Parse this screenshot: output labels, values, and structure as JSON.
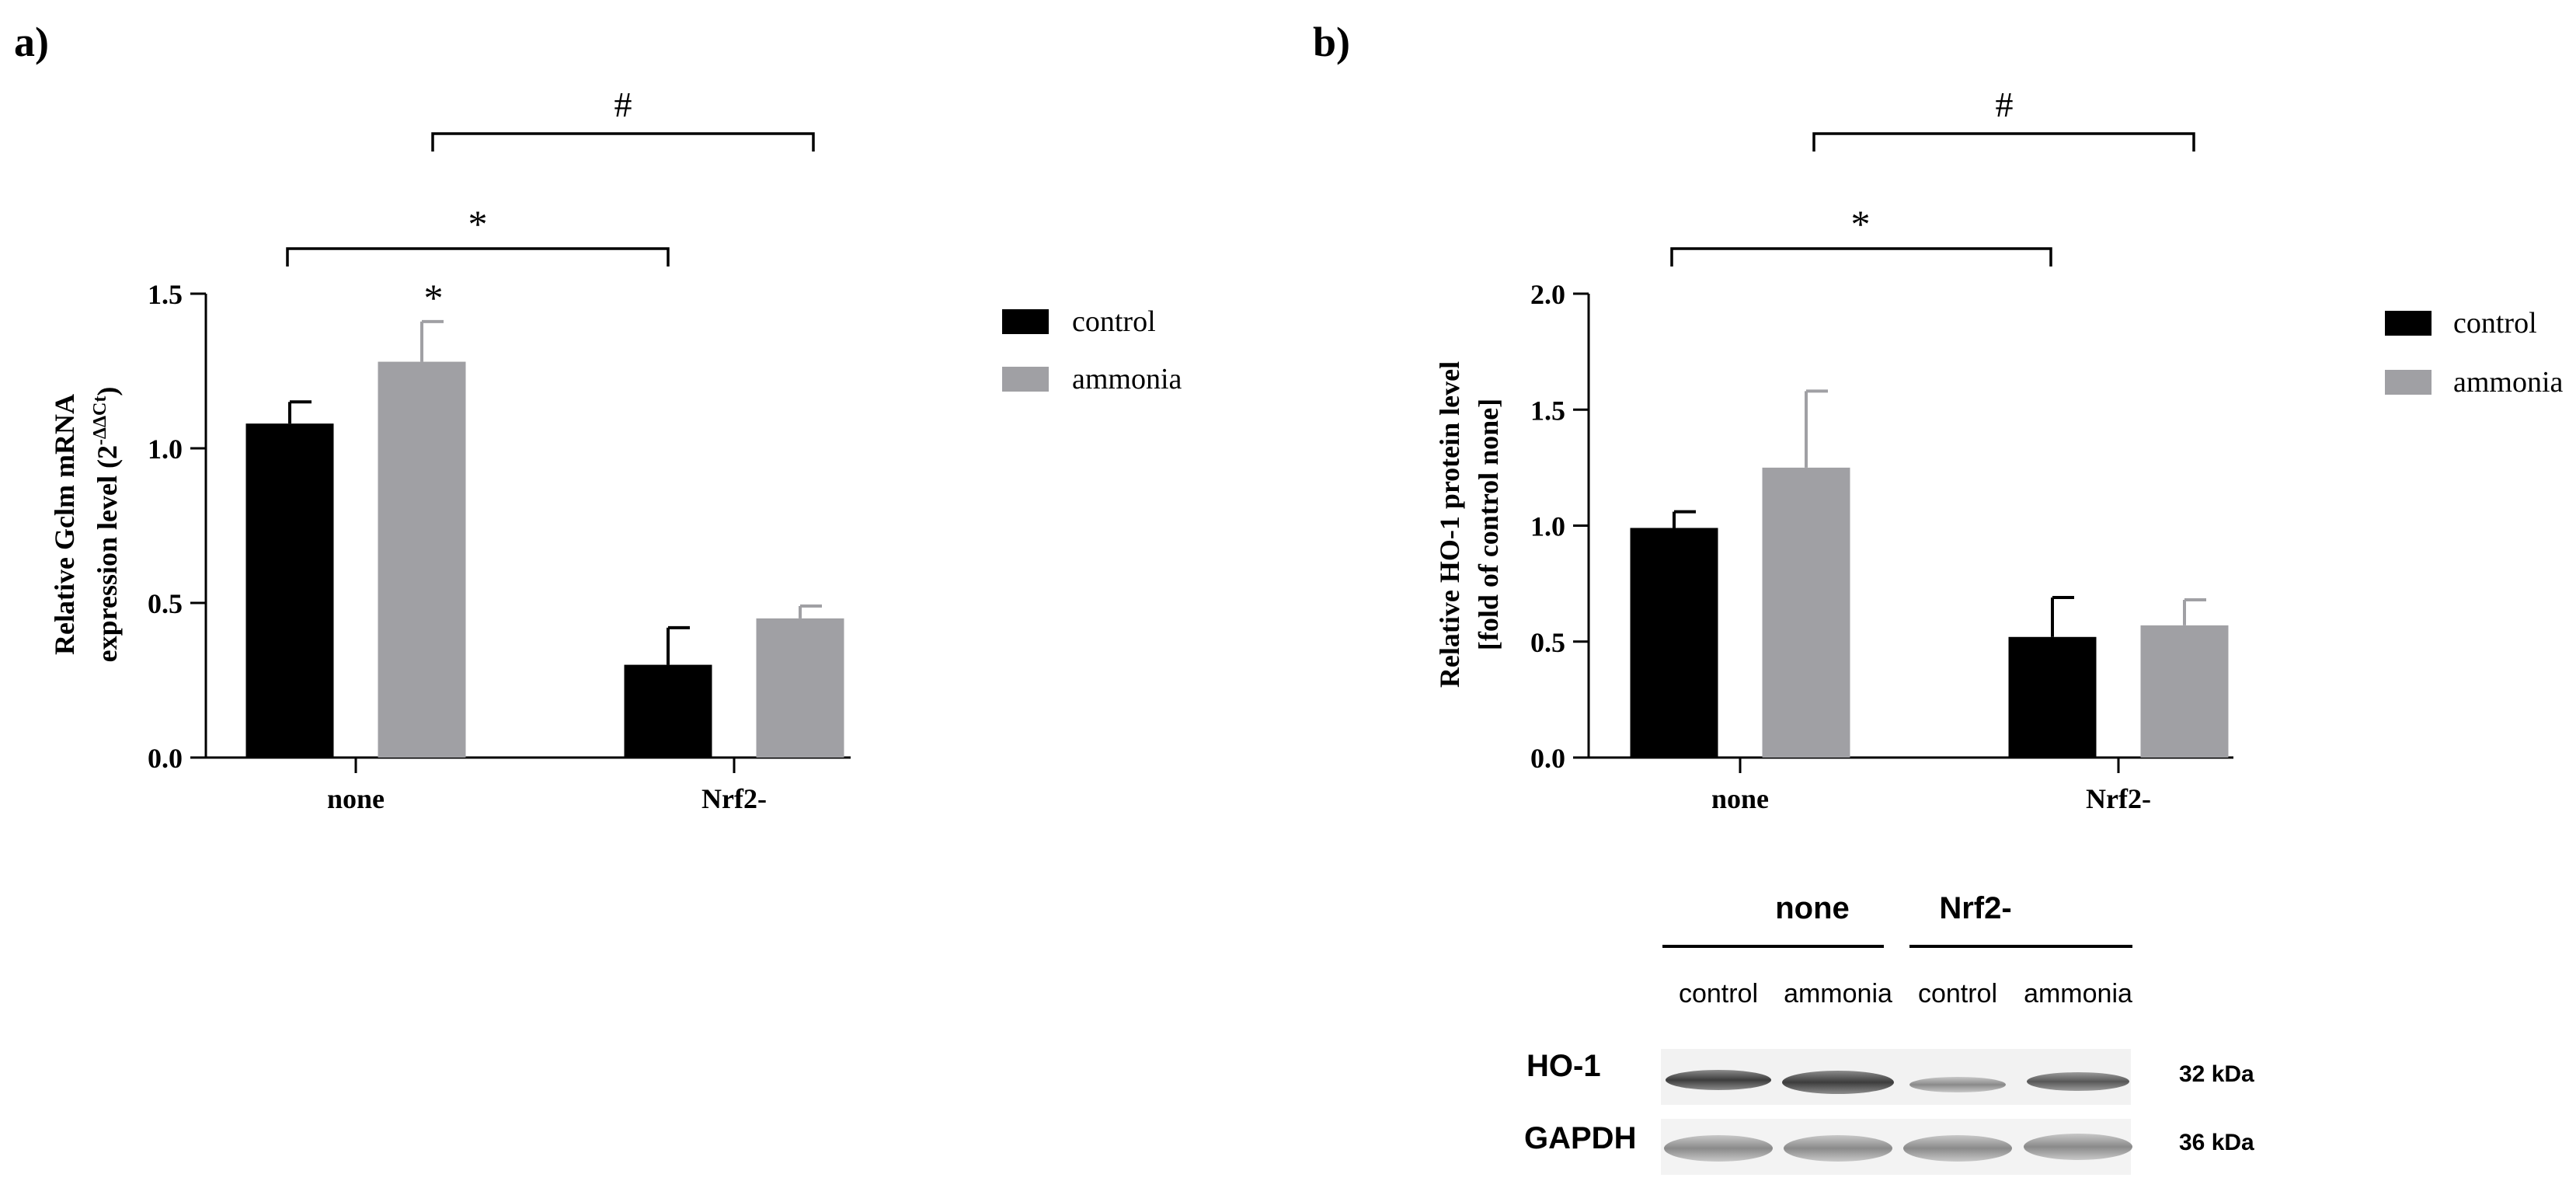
{
  "panels": {
    "a": {
      "label": "a)"
    },
    "b": {
      "label": "b)"
    }
  },
  "chart_data": [
    {
      "type": "bar",
      "panel": "a)",
      "categories": [
        "none",
        "Nrf2-"
      ],
      "series": [
        {
          "name": "control",
          "color": "#000000",
          "values": [
            1.08,
            0.3
          ],
          "errors": [
            0.07,
            0.12
          ]
        },
        {
          "name": "ammonia",
          "color": "#a0a0a4",
          "values": [
            1.28,
            0.45
          ],
          "errors": [
            0.13,
            0.04
          ]
        }
      ],
      "ylabel_line1": "Relative Gclm mRNA",
      "ylabel_line2": "expression level (2",
      "ylabel_sup": "-ΔΔCt",
      "ylabel_close": ")",
      "ylim": [
        0,
        1.5
      ],
      "yticks": [
        "0.0",
        "0.5",
        "1.0",
        "1.5"
      ],
      "ytick_values": [
        0,
        0.5,
        1.0,
        1.5
      ],
      "legend_placement": "right",
      "annotations": {
        "bar_star": "*",
        "bracket_star": "*",
        "bracket_hash": "#"
      }
    },
    {
      "type": "bar",
      "panel": "b)",
      "categories": [
        "none",
        "Nrf2-"
      ],
      "series": [
        {
          "name": "control",
          "color": "#000000",
          "values": [
            0.99,
            0.52
          ],
          "errors": [
            0.07,
            0.17
          ]
        },
        {
          "name": "ammonia",
          "color": "#a0a0a4",
          "values": [
            1.25,
            0.57
          ],
          "errors": [
            0.33,
            0.11
          ]
        }
      ],
      "ylabel_line1": "Relative HO-1 protein level",
      "ylabel_line2": "[fold of control none]",
      "ylim": [
        0,
        2.0
      ],
      "yticks": [
        "0.0",
        "0.5",
        "1.0",
        "1.5",
        "2.0"
      ],
      "ytick_values": [
        0,
        0.5,
        1.0,
        1.5,
        2.0
      ],
      "legend_placement": "right",
      "annotations": {
        "bracket_star": "*",
        "bracket_hash": "#"
      }
    }
  ],
  "western_blot": {
    "groups": [
      "none",
      "Nrf2-"
    ],
    "lanes": [
      "control",
      "ammonia",
      "control",
      "ammonia"
    ],
    "proteins": [
      {
        "name": "HO-1",
        "size": "32 kDa"
      },
      {
        "name": "GAPDH",
        "size": "36 kDa"
      }
    ]
  }
}
